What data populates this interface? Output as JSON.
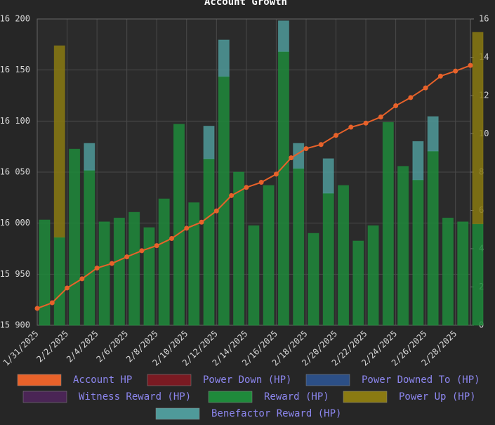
{
  "chart_data": {
    "type": "bar-line",
    "title": "Account Growth",
    "categories": [
      "1/31/2025",
      null,
      "2/2/2025",
      null,
      "2/4/2025",
      null,
      "2/6/2025",
      null,
      "2/8/2025",
      null,
      "2/10/2025",
      null,
      "2/12/2025",
      null,
      "2/14/2025",
      null,
      "2/16/2025",
      null,
      "2/18/2025",
      null,
      "2/20/2025",
      null,
      "2/22/2025",
      null,
      "2/24/2025",
      null,
      "2/26/2025",
      null,
      "2/28/2025",
      null
    ],
    "ylim": [
      15900,
      16200
    ],
    "yticks": [
      {
        "value": 15900,
        "label": "15 900"
      },
      {
        "value": 15950,
        "label": "15 950"
      },
      {
        "value": 16000,
        "label": "16 000"
      },
      {
        "value": 16050,
        "label": "16 050"
      },
      {
        "value": 16100,
        "label": "16 100"
      },
      {
        "value": 16150,
        "label": "16 150"
      },
      {
        "value": 16200,
        "label": "16 200"
      }
    ],
    "y2lim": [
      0,
      16
    ],
    "y2ticks": [
      0,
      2,
      4,
      6,
      8,
      10,
      12,
      14,
      16
    ],
    "grid": true,
    "series": [
      {
        "name": "Account HP",
        "color": "#e8622a",
        "kind": "line",
        "axis": "y",
        "values": [
          15916.5,
          15922,
          15936.5,
          15945.5,
          15956,
          15960.5,
          15967,
          15973,
          15978,
          15985,
          15995,
          16001,
          16012,
          16027,
          16035,
          16040,
          16048,
          16064,
          16073,
          16077,
          16086,
          16094,
          16098,
          16104,
          16115,
          16123,
          16132.5,
          16144,
          16149,
          16154.5
        ]
      },
      {
        "name": "Power Down (HP)",
        "color": "#7a1a22"
      },
      {
        "name": "Power Downed To (HP)",
        "color": "#2c4f86"
      },
      {
        "name": "Witness Reward (HP)",
        "color": "#4a2555"
      },
      {
        "name": "Reward (HP)",
        "color": "#1f8a3b",
        "kind": "bar",
        "axis": "y2",
        "values": [
          5.5,
          4.6,
          9.2,
          8.1,
          5.4,
          5.6,
          5.9,
          5.1,
          6.6,
          10.5,
          6.4,
          8.7,
          13.0,
          8.0,
          5.2,
          7.3,
          14.3,
          8.2,
          4.8,
          6.9,
          7.3,
          4.4,
          5.2,
          10.6,
          8.3,
          7.6,
          9.1,
          5.6,
          5.4,
          5.3
        ]
      },
      {
        "name": "Power Up (HP)",
        "color": "#8a7a12",
        "kind": "bar",
        "axis": "y2",
        "values": [
          0,
          10.0,
          0,
          0,
          0,
          0,
          0,
          0,
          0,
          0,
          0,
          0,
          0,
          0,
          0,
          0,
          0,
          0,
          0,
          0,
          0,
          0,
          0,
          0,
          0,
          0,
          0,
          0,
          0,
          10.0
        ]
      },
      {
        "name": "Benefactor Reward (HP)",
        "color": "#4f9a9a",
        "kind": "bar",
        "axis": "y2",
        "values": [
          0,
          0,
          0,
          1.4,
          0,
          0,
          0,
          0,
          0,
          0,
          0,
          1.7,
          1.9,
          0,
          0,
          0,
          1.6,
          1.3,
          0,
          1.8,
          0,
          0,
          0,
          0,
          0,
          2.0,
          1.8,
          0,
          0,
          0
        ]
      }
    ]
  }
}
